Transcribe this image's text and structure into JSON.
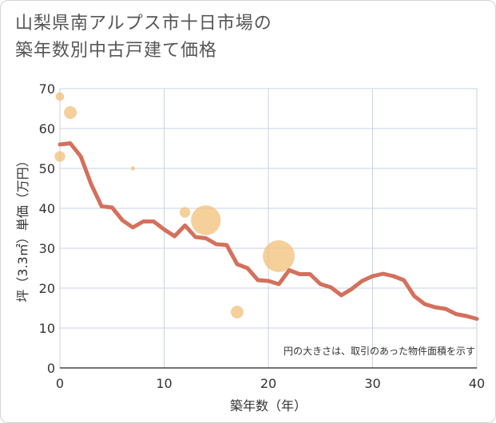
{
  "chart_data": {
    "type": "line",
    "title_lines": [
      "山梨県南アルプス市十日市場の",
      "築年数別中古戸建て価格"
    ],
    "xlabel": "築年数（年）",
    "ylabel": "坪（3.3㎡）単価（万円）",
    "xlim": [
      0,
      40
    ],
    "ylim": [
      0,
      70
    ],
    "xticks": [
      0,
      10,
      20,
      30,
      40
    ],
    "yticks": [
      0,
      10,
      20,
      30,
      40,
      50,
      60,
      70
    ],
    "grid": true,
    "note": "円の大きさは、取引のあった物件面積を示す",
    "line_color": "#d4705c",
    "bubble_color": "#f2c07a",
    "line_series": {
      "name": "坪単価",
      "x": [
        0,
        1,
        2,
        3,
        4,
        5,
        6,
        7,
        8,
        9,
        10,
        11,
        12,
        13,
        14,
        15,
        16,
        17,
        18,
        19,
        20,
        21,
        22,
        23,
        24,
        25,
        26,
        27,
        28,
        29,
        30,
        31,
        32,
        33,
        34,
        35,
        36,
        37,
        38,
        39,
        40
      ],
      "y": [
        56,
        56.3,
        53,
        46,
        40.5,
        40.2,
        37,
        35.2,
        36.7,
        36.7,
        34.7,
        33,
        35.7,
        32.8,
        32.5,
        31,
        30.8,
        26,
        25,
        22,
        21.8,
        21,
        24.5,
        23.5,
        23.5,
        21,
        20.2,
        18.2,
        19.8,
        21.8,
        23,
        23.6,
        23,
        22,
        18,
        16,
        15.2,
        14.8,
        13.5,
        13,
        12.3
      ]
    },
    "bubbles": [
      {
        "x": 0,
        "y": 68,
        "size": 4
      },
      {
        "x": 0,
        "y": 53,
        "size": 5
      },
      {
        "x": 1,
        "y": 64,
        "size": 6
      },
      {
        "x": 7,
        "y": 50,
        "size": 2
      },
      {
        "x": 12,
        "y": 39,
        "size": 5
      },
      {
        "x": 14,
        "y": 37,
        "size": 14
      },
      {
        "x": 17,
        "y": 14,
        "size": 6
      },
      {
        "x": 21,
        "y": 28,
        "size": 15
      }
    ]
  }
}
